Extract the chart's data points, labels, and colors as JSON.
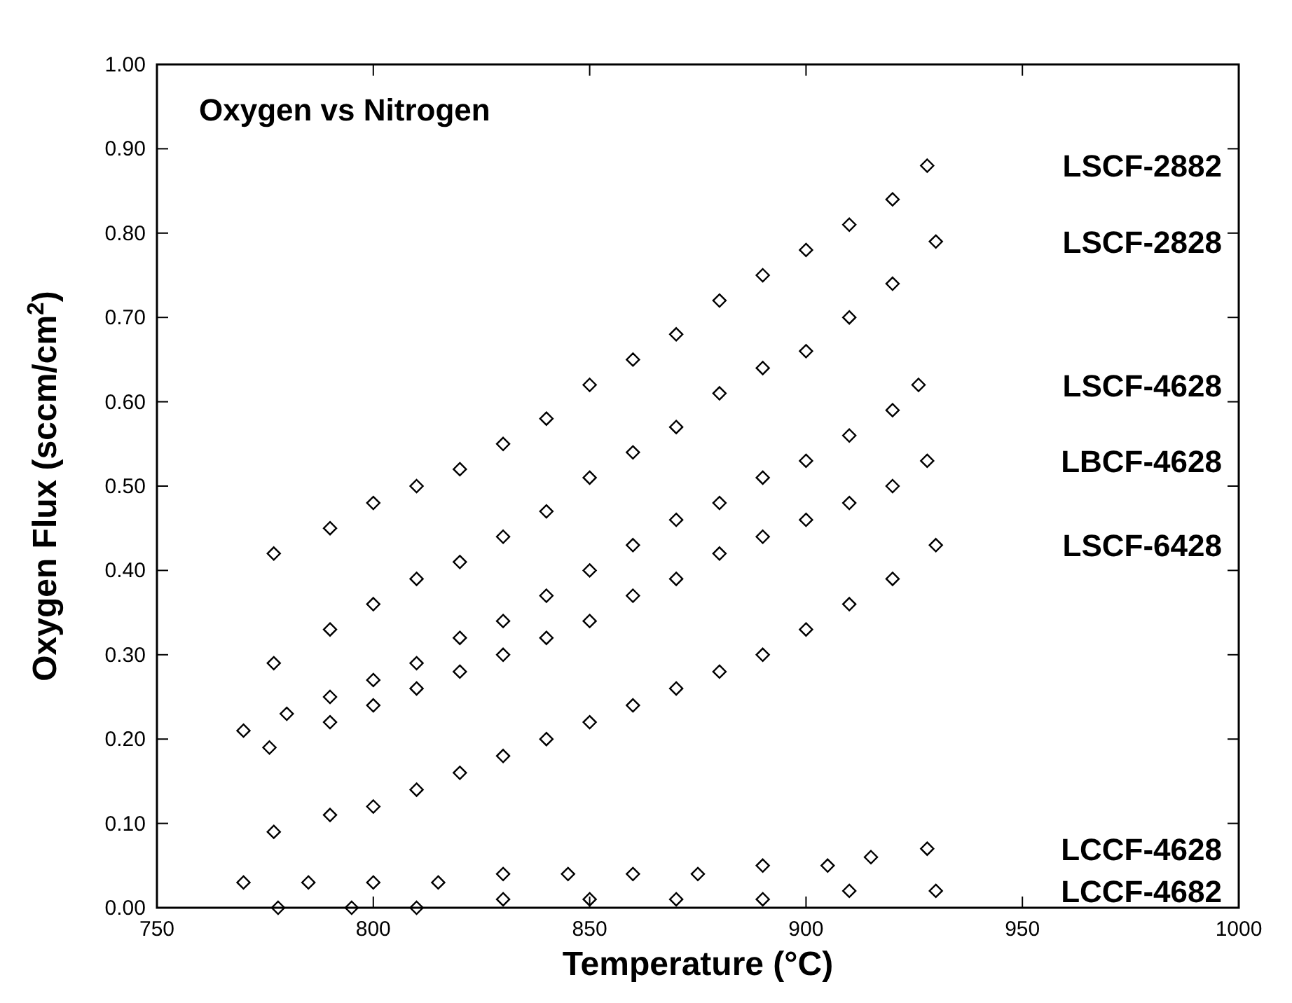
{
  "chart_data": {
    "type": "scatter",
    "title": "Oxygen vs Nitrogen",
    "xlabel": "Temperature (°C)",
    "ylabel": "Oxygen Flux (sccm/cm$^{2}$)",
    "marker": "diamond",
    "grid": false,
    "legend": "right",
    "xlim": [
      750,
      1000
    ],
    "xticks": [
      750,
      800,
      850,
      900,
      950,
      1000
    ],
    "ylim": [
      0,
      1
    ],
    "yticks": [
      {
        "value": 0,
        "label": "0.00"
      },
      {
        "value": 0.1,
        "label": "0.10"
      },
      {
        "value": 0.2,
        "label": "0.20"
      },
      {
        "value": 0.3,
        "label": "0.30"
      },
      {
        "value": 0.4,
        "label": "0.40"
      },
      {
        "value": 0.5,
        "label": "0.50"
      },
      {
        "value": 0.6,
        "label": "0.60"
      },
      {
        "value": 0.7,
        "label": "0.70"
      },
      {
        "value": 0.8,
        "label": "0.80"
      },
      {
        "value": 0.9,
        "label": "0.90"
      },
      {
        "value": 1,
        "label": "1.00"
      }
    ],
    "series": [
      {
        "name": "LSCF-2882",
        "color": "#000000",
        "x": [
          777,
          790,
          800,
          810,
          820,
          830,
          840,
          850,
          860,
          870,
          880,
          890,
          900,
          910,
          920,
          928
        ],
        "values": [
          0.42,
          0.45,
          0.48,
          0.5,
          0.52,
          0.55,
          0.58,
          0.62,
          0.65,
          0.68,
          0.72,
          0.75,
          0.78,
          0.81,
          0.84,
          0.88
        ]
      },
      {
        "name": "LSCF-2828",
        "color": "#000000",
        "x": [
          777,
          790,
          800,
          810,
          820,
          830,
          840,
          850,
          860,
          870,
          880,
          890,
          900,
          910,
          920,
          930
        ],
        "values": [
          0.29,
          0.33,
          0.36,
          0.39,
          0.41,
          0.44,
          0.47,
          0.51,
          0.54,
          0.57,
          0.61,
          0.64,
          0.66,
          0.7,
          0.74,
          0.79
        ]
      },
      {
        "name": "LSCF-4628",
        "color": "#000000",
        "x": [
          770,
          780,
          790,
          800,
          810,
          820,
          830,
          840,
          850,
          860,
          870,
          880,
          890,
          900,
          910,
          920,
          926
        ],
        "values": [
          0.21,
          0.23,
          0.25,
          0.27,
          0.29,
          0.32,
          0.34,
          0.37,
          0.4,
          0.43,
          0.46,
          0.48,
          0.51,
          0.53,
          0.56,
          0.59,
          0.62
        ]
      },
      {
        "name": "LBCF-4628",
        "color": "#000000",
        "x": [
          776,
          790,
          800,
          810,
          820,
          830,
          840,
          850,
          860,
          870,
          880,
          890,
          900,
          910,
          920,
          928
        ],
        "values": [
          0.19,
          0.22,
          0.24,
          0.26,
          0.28,
          0.3,
          0.32,
          0.34,
          0.37,
          0.39,
          0.42,
          0.44,
          0.46,
          0.48,
          0.5,
          0.53
        ]
      },
      {
        "name": "LSCF-6428",
        "color": "#000000",
        "x": [
          777,
          790,
          800,
          810,
          820,
          830,
          840,
          850,
          860,
          870,
          880,
          890,
          900,
          910,
          920,
          930
        ],
        "values": [
          0.09,
          0.11,
          0.12,
          0.14,
          0.16,
          0.18,
          0.2,
          0.22,
          0.24,
          0.26,
          0.28,
          0.3,
          0.33,
          0.36,
          0.39,
          0.43
        ]
      },
      {
        "name": "LCCF-4628",
        "color": "#000000",
        "x": [
          770,
          785,
          800,
          815,
          830,
          845,
          860,
          875,
          890,
          905,
          915,
          928
        ],
        "values": [
          0.03,
          0.03,
          0.03,
          0.03,
          0.04,
          0.04,
          0.04,
          0.04,
          0.05,
          0.05,
          0.06,
          0.07
        ]
      },
      {
        "name": "LCCF-4682",
        "color": "#000000",
        "x": [
          778,
          795,
          810,
          830,
          850,
          870,
          890,
          910,
          930
        ],
        "values": [
          0,
          0,
          0,
          0.01,
          0.01,
          0.01,
          0.01,
          0.02,
          0.02
        ]
      }
    ]
  }
}
